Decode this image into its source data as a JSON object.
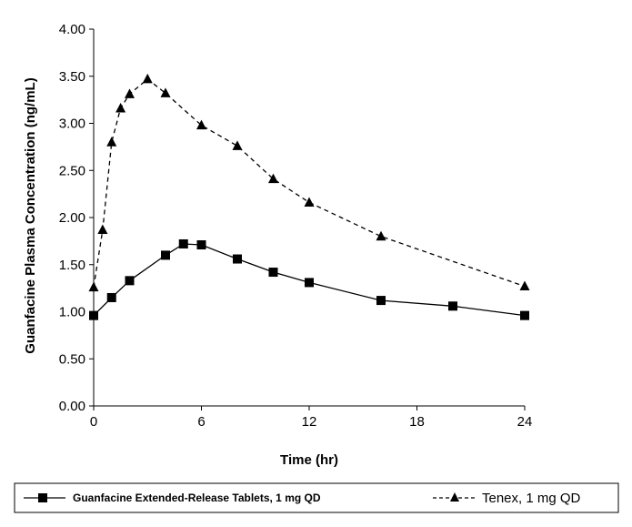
{
  "chart_data": {
    "type": "line",
    "title": "",
    "xlabel": "Time (hr)",
    "ylabel": "Guanfacine Plasma Concentration (ng/mL)",
    "xlim": [
      0,
      24
    ],
    "ylim": [
      0,
      4
    ],
    "x_ticks": [
      "0",
      "6",
      "12",
      "18",
      "24"
    ],
    "y_ticks": [
      "0.00",
      "0.50",
      "1.00",
      "1.50",
      "2.00",
      "2.50",
      "3.00",
      "3.50",
      "4.00"
    ],
    "grid": false,
    "legend_position": "bottom",
    "series": [
      {
        "name": "Guanfacine Extended-Release Tablets, 1 mg QD",
        "marker": "square",
        "line_style": "solid",
        "color": "#000000",
        "x": [
          0,
          1,
          2,
          4,
          5,
          6,
          8,
          10,
          12,
          16,
          20,
          24
        ],
        "y": [
          0.96,
          1.15,
          1.33,
          1.6,
          1.72,
          1.71,
          1.56,
          1.42,
          1.31,
          1.12,
          1.06,
          0.96
        ]
      },
      {
        "name": "Tenex, 1 mg QD",
        "marker": "triangle",
        "line_style": "dashed",
        "color": "#000000",
        "x": [
          0,
          0.5,
          1,
          1.5,
          2,
          3,
          4,
          6,
          8,
          10,
          12,
          16,
          24
        ],
        "y": [
          1.26,
          1.87,
          2.8,
          3.16,
          3.31,
          3.47,
          3.32,
          2.98,
          2.76,
          2.41,
          2.16,
          1.8,
          1.27
        ]
      }
    ]
  }
}
